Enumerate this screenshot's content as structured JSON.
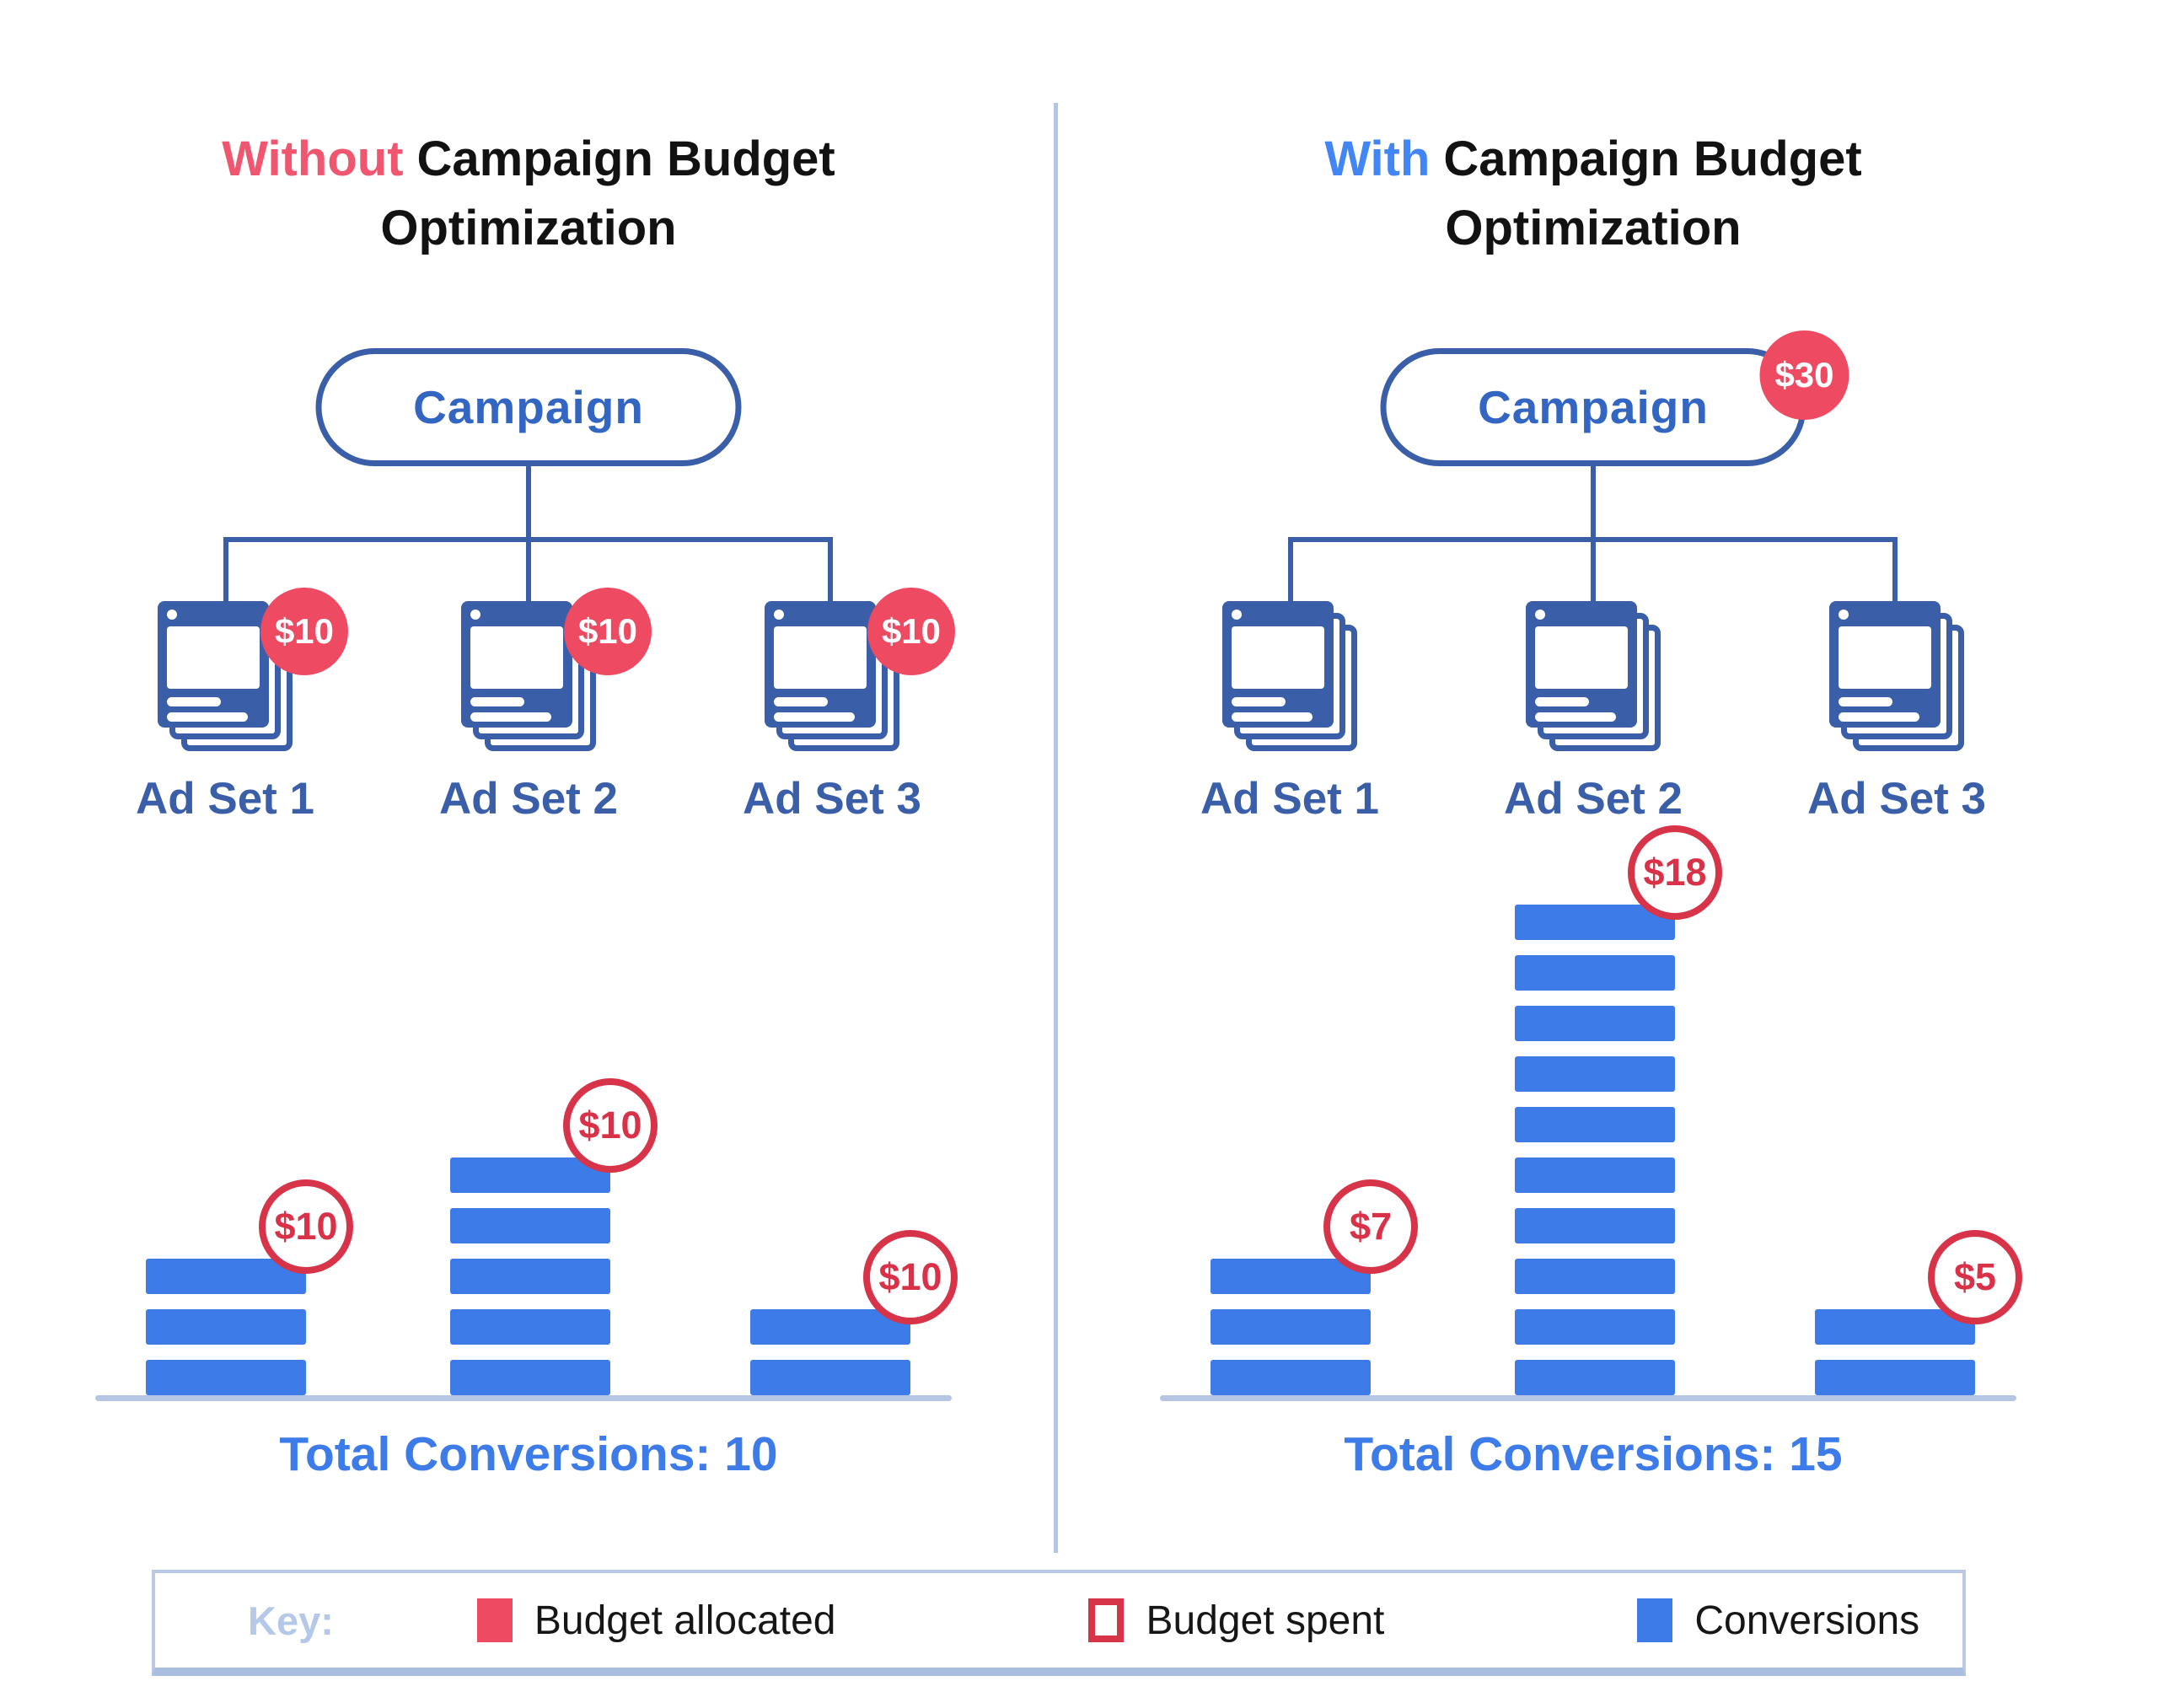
{
  "colors": {
    "accent_red": "#EE4A62",
    "ring_red": "#D7344A",
    "bright_blue": "#3D7CE8",
    "structure_blue": "#3A5FA8",
    "campaign_text_blue": "#3365C2",
    "highlight_red": "#F05670",
    "highlight_blue": "#4285F4",
    "light_blue_lines": "#B7C5E4",
    "key_label_blue": "#B5C8E8"
  },
  "titles": {
    "left": {
      "highlight": "Without",
      "rest": "Campaign Budget",
      "line2": "Optimization"
    },
    "right": {
      "highlight": "With",
      "rest": "Campaign Budget",
      "line2": "Optimization"
    }
  },
  "left_panel": {
    "campaign_label": "Campaign",
    "ad_sets": [
      {
        "label": "Ad Set 1",
        "allocated_badge": "$10",
        "spent_badge": "$10",
        "conversions": 3
      },
      {
        "label": "Ad Set 2",
        "allocated_badge": "$10",
        "spent_badge": "$10",
        "conversions": 5
      },
      {
        "label": "Ad Set 3",
        "allocated_badge": "$10",
        "spent_badge": "$10",
        "conversions": 2
      }
    ],
    "total_label": "Total Conversions: 10"
  },
  "right_panel": {
    "campaign_label": "Campaign",
    "campaign_budget_badge": "$30",
    "ad_sets": [
      {
        "label": "Ad Set 1",
        "spent_badge": "$7",
        "conversions": 3
      },
      {
        "label": "Ad Set 2",
        "spent_badge": "$18",
        "conversions": 10
      },
      {
        "label": "Ad Set 3",
        "spent_badge": "$5",
        "conversions": 2
      }
    ],
    "total_label": "Total Conversions: 15"
  },
  "legend": {
    "key_label": "Key:",
    "items": [
      {
        "label": "Budget allocated",
        "swatch": "filled-red"
      },
      {
        "label": "Budget spent",
        "swatch": "outlined-red"
      },
      {
        "label": "Conversions",
        "swatch": "filled-blue"
      }
    ]
  },
  "chart_data": [
    {
      "type": "bar",
      "title": "Without Campaign Budget Optimization",
      "categories": [
        "Ad Set 1",
        "Ad Set 2",
        "Ad Set 3"
      ],
      "series": [
        {
          "name": "Conversions",
          "values": [
            3,
            5,
            2
          ]
        },
        {
          "name": "Budget spent ($)",
          "values": [
            10,
            10,
            10
          ]
        },
        {
          "name": "Budget allocated per ad set ($)",
          "values": [
            10,
            10,
            10
          ]
        }
      ],
      "total_conversions": 10,
      "note": "1 blue block = 1 conversion",
      "legend_position": "bottom"
    },
    {
      "type": "bar",
      "title": "With Campaign Budget Optimization",
      "categories": [
        "Ad Set 1",
        "Ad Set 2",
        "Ad Set 3"
      ],
      "series": [
        {
          "name": "Conversions",
          "values": [
            3,
            10,
            2
          ]
        },
        {
          "name": "Budget spent ($)",
          "values": [
            7,
            18,
            5
          ]
        }
      ],
      "campaign_budget_allocated": 30,
      "total_conversions": 15,
      "note": "1 blue block = 1 conversion",
      "legend_position": "bottom"
    }
  ]
}
